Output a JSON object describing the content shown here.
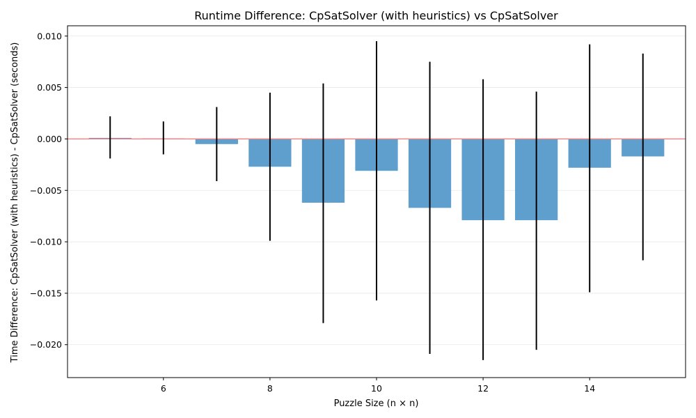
{
  "chart_data": {
    "type": "bar",
    "title": "Runtime Difference: CpSatSolver (with heuristics) vs CpSatSolver",
    "xlabel": "Puzzle Size (n × n)",
    "ylabel": "Time Difference: CpSatSolver (with heuristics) - CpSatSolver (seconds)",
    "x": [
      5,
      6,
      7,
      8,
      9,
      10,
      11,
      12,
      13,
      14,
      15
    ],
    "values": [
      0.0001,
      5e-05,
      -0.0005,
      -0.0027,
      -0.0062,
      -0.0031,
      -0.0067,
      -0.0079,
      -0.0079,
      -0.0028,
      -0.0017
    ],
    "error_low": [
      -0.0019,
      -0.0015,
      -0.0041,
      -0.0099,
      -0.0179,
      -0.0157,
      -0.0209,
      -0.0215,
      -0.0205,
      -0.0149,
      -0.0118
    ],
    "error_high": [
      0.0022,
      0.0017,
      0.0031,
      0.0045,
      0.0054,
      0.0095,
      0.0075,
      0.0058,
      0.0046,
      0.0092,
      0.0083
    ],
    "xlim": [
      4.2,
      15.8
    ],
    "ylim": [
      -0.0232,
      0.011
    ],
    "xticks": [
      6,
      8,
      10,
      12,
      14
    ],
    "xtick_labels": [
      "6",
      "8",
      "10",
      "12",
      "14"
    ],
    "yticks": [
      0.01,
      0.005,
      0.0,
      -0.005,
      -0.01,
      -0.015,
      -0.02
    ],
    "ytick_labels": [
      "0.010",
      "0.005",
      "0.000",
      "−0.005",
      "−0.010",
      "−0.015",
      "−0.020"
    ],
    "grid": true,
    "bar_color": "#5f9fcd",
    "errorbar_color": "#000000",
    "zero_line_color": "#f08080"
  }
}
